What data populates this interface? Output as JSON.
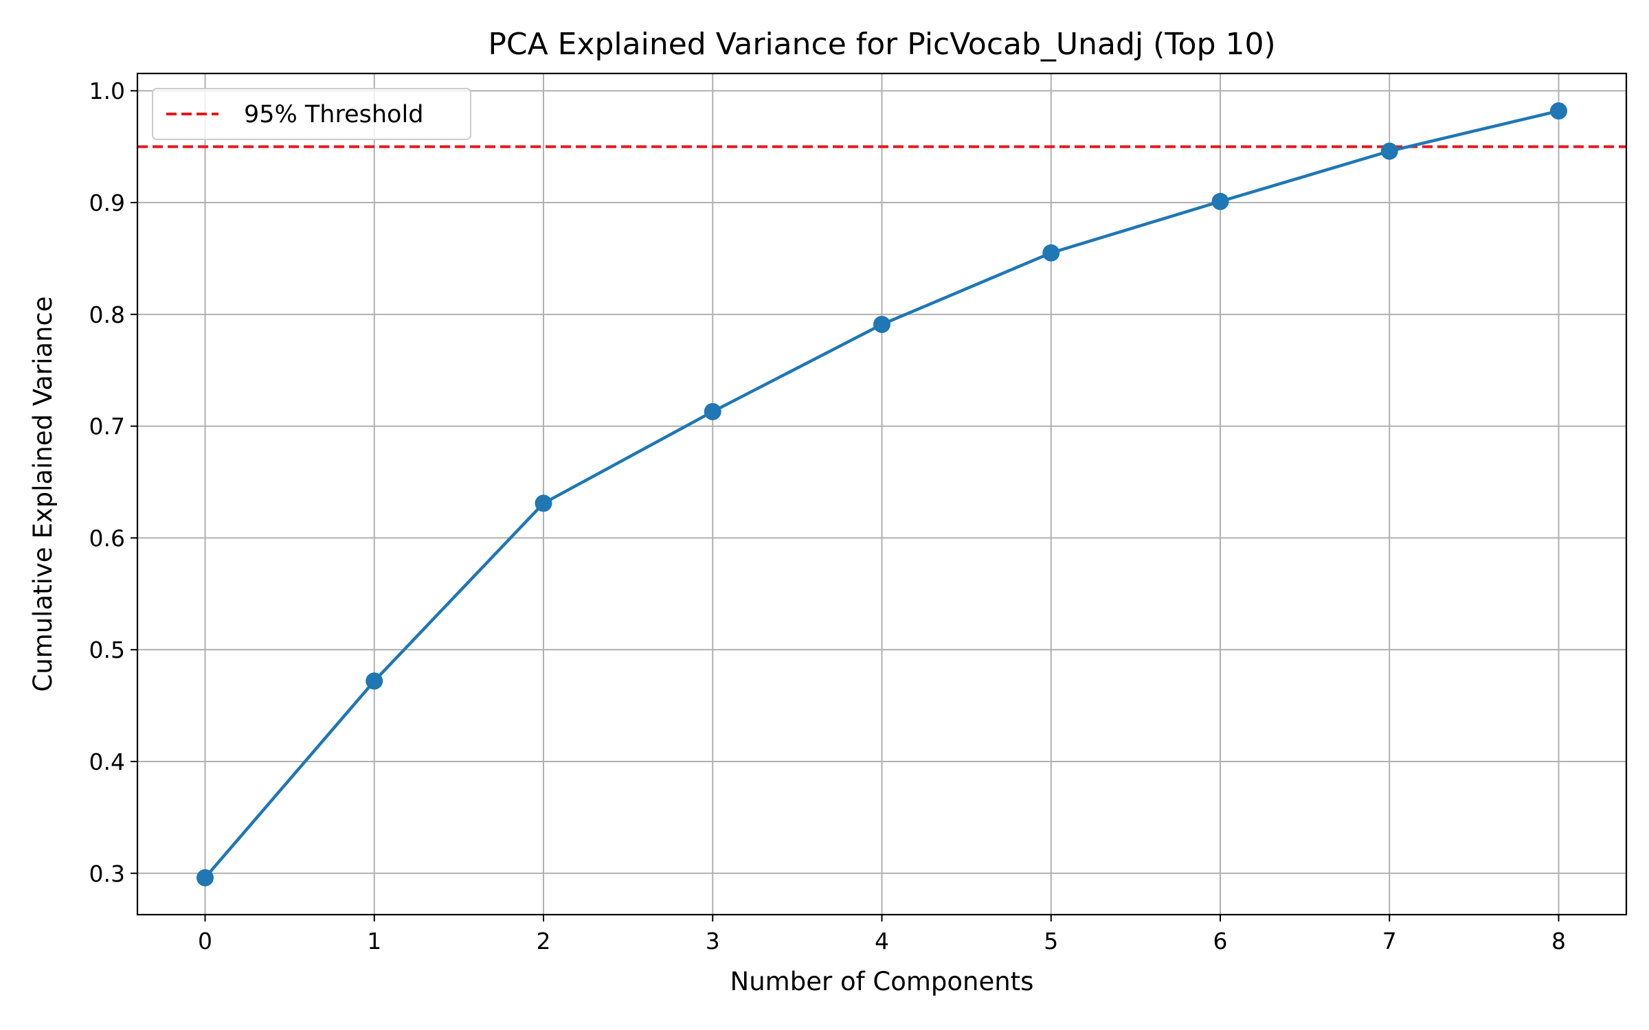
{
  "chart_data": {
    "type": "line",
    "title": "PCA Explained Variance for PicVocab_Unadj (Top 10)",
    "xlabel": "Number of Components",
    "ylabel": "Cumulative Explained Variance",
    "x": [
      0,
      1,
      2,
      3,
      4,
      5,
      6,
      7,
      8
    ],
    "series": [
      {
        "values": [
          0.296,
          0.472,
          0.631,
          0.713,
          0.791,
          0.855,
          0.901,
          0.946,
          0.982
        ],
        "color": "#1f77b4",
        "marker": "circle"
      }
    ],
    "threshold": {
      "label": "95% Threshold",
      "value": 0.95,
      "color": "#e8161b",
      "style": "dashed"
    },
    "xticks": [
      "0",
      "1",
      "2",
      "3",
      "4",
      "5",
      "6",
      "7",
      "8"
    ],
    "yticks": [
      "0.3",
      "0.4",
      "0.5",
      "0.6",
      "0.7",
      "0.8",
      "0.9",
      "1.0"
    ],
    "xlim": [
      -0.4,
      8.4
    ],
    "ylim": [
      0.263,
      1.0155
    ],
    "grid": true,
    "legend_position": "top-left"
  }
}
